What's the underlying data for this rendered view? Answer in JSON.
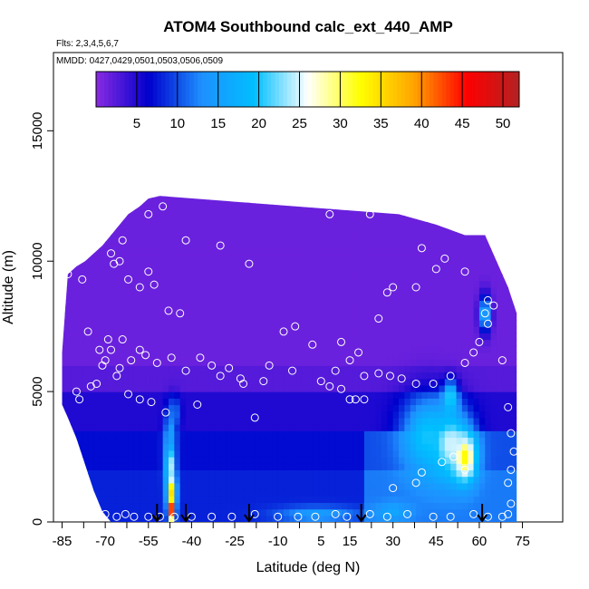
{
  "chart_data": {
    "type": "heatmap",
    "title": "ATOM4 Southbound calc_ext_440_AMP",
    "subtitle_flights": "Flts: 2,3,4,5,6,7",
    "subtitle_dates": "MMDD: 0427,0429,0501,0503,0506,0509",
    "xlabel": "Latitude (deg N)",
    "ylabel": "Altitude (m)",
    "xlim": [
      -88,
      89
    ],
    "ylim": [
      0,
      18000
    ],
    "x_ticks": [
      -85,
      -70,
      -55,
      -40,
      -25,
      -10,
      5,
      15,
      30,
      45,
      60,
      75
    ],
    "y_ticks": [
      0,
      5000,
      10000,
      15000
    ],
    "colorbar": {
      "min": 0,
      "max": 52,
      "ticks": [
        5,
        10,
        15,
        20,
        25,
        30,
        35,
        40,
        45,
        50
      ],
      "colors": [
        "#8a2be2",
        "#0000cd",
        "#1e90ff",
        "#00bfff",
        "#ffffff",
        "#ffff00",
        "#ffa500",
        "#ff0000",
        "#b22222"
      ]
    },
    "profiles": [
      {
        "lat": -85,
        "top": 6500,
        "bottom": 4500
      },
      {
        "lat": -83,
        "top": 9500,
        "bottom": 4000
      },
      {
        "lat": -80,
        "top": 9800,
        "bottom": 3200
      },
      {
        "lat": -77,
        "top": 10000,
        "bottom": 2200
      },
      {
        "lat": -74,
        "top": 10300,
        "bottom": 1200
      },
      {
        "lat": -71,
        "top": 10600,
        "bottom": 400
      },
      {
        "lat": -68,
        "top": 11000,
        "bottom": 0
      },
      {
        "lat": -65,
        "top": 11400,
        "bottom": 0
      },
      {
        "lat": -62,
        "top": 11800,
        "bottom": 0
      },
      {
        "lat": -58,
        "top": 12100,
        "bottom": 0
      },
      {
        "lat": -55,
        "top": 12400,
        "bottom": 0
      },
      {
        "lat": -51,
        "top": 12500,
        "bottom": 0
      },
      {
        "lat": 32,
        "top": 11800,
        "bottom": 0
      },
      {
        "lat": 45,
        "top": 11400,
        "bottom": 0
      },
      {
        "lat": 55,
        "top": 11000,
        "bottom": 0
      },
      {
        "lat": 62,
        "top": 11000,
        "bottom": 0
      },
      {
        "lat": 66,
        "top": 10000,
        "bottom": 0
      },
      {
        "lat": 70,
        "top": 9000,
        "bottom": 0
      },
      {
        "lat": 73,
        "top": 8000,
        "bottom": 0
      }
    ],
    "hotspots": [
      {
        "lat": -47,
        "alt": 500,
        "value": 45,
        "dlat": 1.2,
        "dalt": 500
      },
      {
        "lat": -47,
        "alt": 1200,
        "value": 35,
        "dlat": 1.5,
        "dalt": 600
      },
      {
        "lat": -47.5,
        "alt": 2200,
        "value": 25,
        "dlat": 1.8,
        "dalt": 900
      },
      {
        "lat": -47.5,
        "alt": 3400,
        "value": 15,
        "dlat": 2,
        "dalt": 900
      },
      {
        "lat": -46,
        "alt": 4200,
        "value": 12,
        "dlat": 2,
        "dalt": 600
      },
      {
        "lat": 55,
        "alt": 2500,
        "value": 33,
        "dlat": 4,
        "dalt": 900
      },
      {
        "lat": 50,
        "alt": 3000,
        "value": 25,
        "dlat": 7,
        "dalt": 1300
      },
      {
        "lat": 42,
        "alt": 3300,
        "value": 20,
        "dlat": 9,
        "dalt": 1500
      },
      {
        "lat": 50,
        "alt": 4800,
        "value": 22,
        "dlat": 2.5,
        "dalt": 600
      },
      {
        "lat": 62,
        "alt": 8000,
        "value": 18,
        "dlat": 2,
        "dalt": 700
      },
      {
        "lat": 30,
        "alt": 400,
        "value": 16,
        "dlat": 6,
        "dalt": 350
      },
      {
        "lat": 4,
        "alt": 300,
        "value": 15,
        "dlat": 14,
        "dalt": 300
      }
    ],
    "arrow_lats": [
      -52,
      -42,
      -20,
      19,
      61
    ],
    "samples": [
      [
        -70,
        6200
      ],
      [
        -69,
        7000
      ],
      [
        -68,
        6600
      ],
      [
        -71,
        6000
      ],
      [
        -66,
        5600
      ],
      [
        -73,
        5300
      ],
      [
        -75,
        5200
      ],
      [
        -79,
        4700
      ],
      [
        -61,
        6200
      ],
      [
        -64,
        7000
      ],
      [
        -58,
        6600
      ],
      [
        -56,
        6400
      ],
      [
        -52,
        6100
      ],
      [
        -47,
        6300
      ],
      [
        -42,
        5800
      ],
      [
        -37,
        6300
      ],
      [
        -33,
        6000
      ],
      [
        -27,
        5900
      ],
      [
        -23,
        5500
      ],
      [
        -18,
        4000
      ],
      [
        -13,
        6000
      ],
      [
        -8,
        7300
      ],
      [
        -4,
        7500
      ],
      [
        2,
        6800
      ],
      [
        -67,
        9900
      ],
      [
        -65,
        10000
      ],
      [
        -62,
        9300
      ],
      [
        -58,
        9000
      ],
      [
        -55,
        9600
      ],
      [
        -53,
        9100
      ],
      [
        -48,
        8100
      ],
      [
        -44,
        8000
      ],
      [
        -83,
        9500
      ],
      [
        -78,
        9300
      ],
      [
        -68,
        10300
      ],
      [
        -64,
        10800
      ],
      [
        -55,
        11800
      ],
      [
        -50,
        12100
      ],
      [
        -42,
        10800
      ],
      [
        -30,
        10600
      ],
      [
        -20,
        9900
      ],
      [
        -10,
        12400
      ],
      [
        -7,
        12400
      ],
      [
        8,
        11800
      ],
      [
        22,
        11800
      ],
      [
        40,
        10500
      ],
      [
        48,
        10100
      ],
      [
        55,
        9600
      ],
      [
        45,
        9700
      ],
      [
        38,
        9000
      ],
      [
        30,
        9000
      ],
      [
        28,
        8800
      ],
      [
        25,
        7800
      ],
      [
        20,
        5600
      ],
      [
        20,
        4700
      ],
      [
        17,
        4700
      ],
      [
        15,
        6200
      ],
      [
        10,
        5800
      ],
      [
        8,
        5200
      ],
      [
        12,
        6900
      ],
      [
        18,
        6500
      ],
      [
        25,
        5700
      ],
      [
        29,
        5600
      ],
      [
        33,
        5500
      ],
      [
        38,
        5300
      ],
      [
        44,
        5300
      ],
      [
        50,
        5600
      ],
      [
        55,
        6100
      ],
      [
        58,
        6500
      ],
      [
        60,
        6900
      ],
      [
        62,
        8000
      ],
      [
        63,
        7600
      ],
      [
        63,
        8500
      ],
      [
        65,
        8300
      ],
      [
        68,
        6200
      ],
      [
        70,
        4400
      ],
      [
        71,
        3400
      ],
      [
        72,
        2700
      ],
      [
        71,
        2000
      ],
      [
        70,
        1500
      ],
      [
        55,
        2000
      ],
      [
        51,
        2500
      ],
      [
        47,
        2300
      ],
      [
        40,
        1900
      ],
      [
        38,
        1500
      ],
      [
        30,
        1300
      ],
      [
        22,
        300
      ],
      [
        28,
        200
      ],
      [
        35,
        300
      ],
      [
        44,
        200
      ],
      [
        50,
        200
      ],
      [
        58,
        300
      ],
      [
        63,
        200
      ],
      [
        68,
        200
      ],
      [
        70,
        300
      ],
      [
        71,
        700
      ],
      [
        -70,
        300
      ],
      [
        -66,
        200
      ],
      [
        -63,
        300
      ],
      [
        -60,
        200
      ],
      [
        -55,
        200
      ],
      [
        -51,
        200
      ],
      [
        -46,
        200
      ],
      [
        -40,
        200
      ],
      [
        -33,
        200
      ],
      [
        -26,
        200
      ],
      [
        -18,
        300
      ],
      [
        -10,
        200
      ],
      [
        -3,
        200
      ],
      [
        3,
        200
      ],
      [
        10,
        300
      ],
      [
        14,
        200
      ],
      [
        -65,
        5900
      ],
      [
        -62,
        4900
      ],
      [
        -58,
        4700
      ],
      [
        -54,
        4600
      ],
      [
        -49,
        4200
      ],
      [
        -38,
        4500
      ],
      [
        -30,
        5600
      ],
      [
        -22,
        5300
      ],
      [
        -15,
        5400
      ],
      [
        -5,
        5800
      ],
      [
        5,
        5400
      ],
      [
        12,
        5100
      ],
      [
        15,
        4700
      ],
      [
        -80,
        5000
      ],
      [
        -76,
        7300
      ],
      [
        -72,
        6600
      ]
    ]
  }
}
